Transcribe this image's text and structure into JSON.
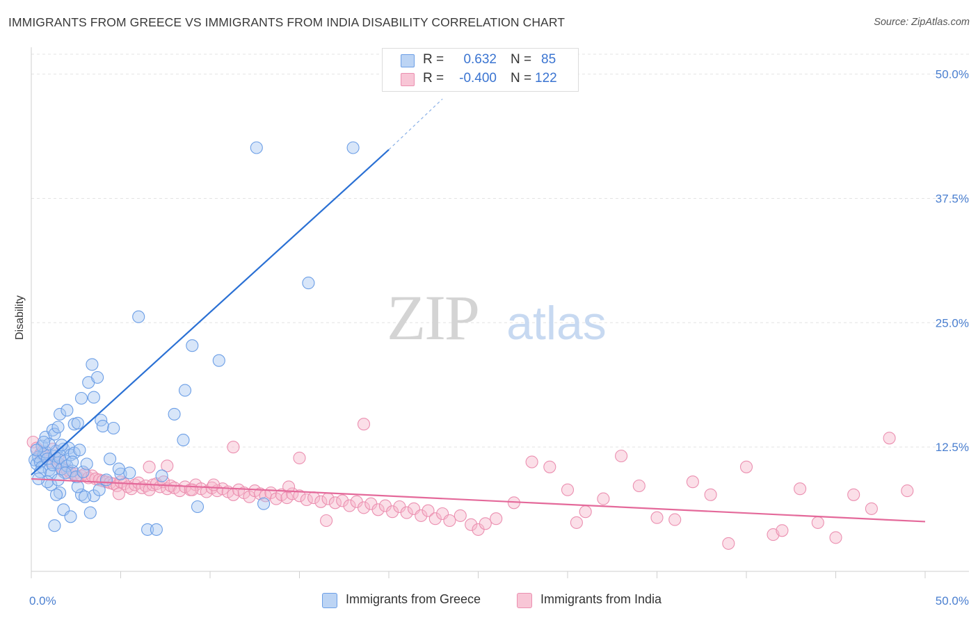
{
  "title": "IMMIGRANTS FROM GREECE VS IMMIGRANTS FROM INDIA DISABILITY CORRELATION CHART",
  "source": "Source: ZipAtlas.com",
  "watermark": {
    "zip": "ZIP",
    "atlas": "atlas"
  },
  "legend": {
    "greece": {
      "r_label": "R =",
      "r_value": "0.632",
      "n_label": "N =",
      "n_value": "85"
    },
    "india": {
      "r_label": "R =",
      "r_value": "-0.400",
      "n_label": "N =",
      "n_value": "122"
    }
  },
  "bottom_legend": {
    "greece": "Immigrants from Greece",
    "india": "Immigrants from India"
  },
  "colors": {
    "greece_fill": "#a9c8f2",
    "greece_stroke": "#6b9ee6",
    "greece_line": "#2a70d4",
    "india_fill": "#f6b9cd",
    "india_stroke": "#eb8fb0",
    "india_line": "#e4699a",
    "grid": "#e3e3e3",
    "axis_text": "#4a7fd0"
  },
  "chart_data": {
    "type": "scatter",
    "title": "IMMIGRANTS FROM GREECE VS IMMIGRANTS FROM INDIA DISABILITY CORRELATION CHART",
    "xlabel": "",
    "ylabel": "Disability",
    "xlim": [
      0,
      50
    ],
    "ylim": [
      0,
      52
    ],
    "x_tick_labels": [
      "0.0%",
      "50.0%"
    ],
    "y_ticks": [
      12.5,
      25.0,
      37.5,
      50.0
    ],
    "y_tick_labels": [
      "12.5%",
      "25.0%",
      "37.5%",
      "50.0%"
    ],
    "grid": true,
    "legend_position": "top-center",
    "series": [
      {
        "name": "Immigrants from Greece",
        "R": 0.632,
        "N": 85,
        "trend": {
          "x0": 0,
          "y0": 9.7,
          "x1": 20,
          "y1": 42.4,
          "dash_x1": 23,
          "dash_y1": 47.5
        },
        "points": [
          [
            0.2,
            11.2
          ],
          [
            0.3,
            10.8
          ],
          [
            0.4,
            11.5
          ],
          [
            0.5,
            11.0
          ],
          [
            0.6,
            10.5
          ],
          [
            0.7,
            11.8
          ],
          [
            0.8,
            12.0
          ],
          [
            0.9,
            11.3
          ],
          [
            1.0,
            10.2
          ],
          [
            1.1,
            9.8
          ],
          [
            1.2,
            10.7
          ],
          [
            1.3,
            11.6
          ],
          [
            1.4,
            12.1
          ],
          [
            1.5,
            10.9
          ],
          [
            1.6,
            11.4
          ],
          [
            1.7,
            10.3
          ],
          [
            1.8,
            12.3
          ],
          [
            1.9,
            11.1
          ],
          [
            2.0,
            10.6
          ],
          [
            2.1,
            12.4
          ],
          [
            2.2,
            11.7
          ],
          [
            2.3,
            10.1
          ],
          [
            2.4,
            11.9
          ],
          [
            2.5,
            9.5
          ],
          [
            0.5,
            10.0
          ],
          [
            0.6,
            12.6
          ],
          [
            0.8,
            13.5
          ],
          [
            1.0,
            12.8
          ],
          [
            1.2,
            14.2
          ],
          [
            1.3,
            13.8
          ],
          [
            1.5,
            14.5
          ],
          [
            1.6,
            15.8
          ],
          [
            2.0,
            16.2
          ],
          [
            2.4,
            14.8
          ],
          [
            2.6,
            14.9
          ],
          [
            2.8,
            17.4
          ],
          [
            3.2,
            19.0
          ],
          [
            3.4,
            20.8
          ],
          [
            3.5,
            17.5
          ],
          [
            3.7,
            19.5
          ],
          [
            3.9,
            15.2
          ],
          [
            4.0,
            14.6
          ],
          [
            4.6,
            14.4
          ],
          [
            5.0,
            9.8
          ],
          [
            5.5,
            9.9
          ],
          [
            6.0,
            25.6
          ],
          [
            6.5,
            4.2
          ],
          [
            7.0,
            4.2
          ],
          [
            7.3,
            9.6
          ],
          [
            8.0,
            15.8
          ],
          [
            8.5,
            13.2
          ],
          [
            8.6,
            18.2
          ],
          [
            9.0,
            22.7
          ],
          [
            9.3,
            6.5
          ],
          [
            10.5,
            21.2
          ],
          [
            12.6,
            42.6
          ],
          [
            13.0,
            6.8
          ],
          [
            15.5,
            29.0
          ],
          [
            18.0,
            42.6
          ],
          [
            1.6,
            7.9
          ],
          [
            1.4,
            7.7
          ],
          [
            2.8,
            7.7
          ],
          [
            3.5,
            7.6
          ],
          [
            3.0,
            7.5
          ],
          [
            1.8,
            6.2
          ],
          [
            2.2,
            5.5
          ],
          [
            3.3,
            5.9
          ],
          [
            1.3,
            4.6
          ],
          [
            4.2,
            9.2
          ],
          [
            4.4,
            11.3
          ],
          [
            2.9,
            10.0
          ],
          [
            2.7,
            12.2
          ],
          [
            1.1,
            8.7
          ],
          [
            0.9,
            9.0
          ],
          [
            1.9,
            9.9
          ],
          [
            2.6,
            8.5
          ],
          [
            0.4,
            9.3
          ],
          [
            3.8,
            8.2
          ],
          [
            4.9,
            10.3
          ],
          [
            0.7,
            13.0
          ],
          [
            1.7,
            12.7
          ],
          [
            2.3,
            11.0
          ],
          [
            0.3,
            12.2
          ],
          [
            3.1,
            10.8
          ],
          [
            1.5,
            9.2
          ]
        ]
      },
      {
        "name": "Immigrants from India",
        "R": -0.4,
        "N": 122,
        "trend": {
          "x0": 0,
          "y0": 9.3,
          "x1": 50,
          "y1": 5.0
        },
        "points": [
          [
            0.1,
            13.0
          ],
          [
            0.3,
            12.4
          ],
          [
            0.5,
            11.8
          ],
          [
            0.6,
            12.0
          ],
          [
            0.8,
            11.6
          ],
          [
            1.0,
            11.1
          ],
          [
            1.2,
            12.3
          ],
          [
            1.4,
            10.9
          ],
          [
            1.5,
            11.3
          ],
          [
            1.7,
            10.5
          ],
          [
            1.8,
            10.0
          ],
          [
            2.0,
            10.2
          ],
          [
            2.2,
            9.9
          ],
          [
            2.4,
            9.8
          ],
          [
            2.6,
            9.5
          ],
          [
            2.8,
            9.6
          ],
          [
            3.0,
            9.8
          ],
          [
            3.2,
            9.4
          ],
          [
            3.4,
            9.6
          ],
          [
            3.6,
            9.3
          ],
          [
            3.8,
            9.2
          ],
          [
            4.0,
            9.1
          ],
          [
            4.2,
            9.0
          ],
          [
            4.4,
            8.9
          ],
          [
            4.6,
            8.8
          ],
          [
            4.8,
            8.6
          ],
          [
            5.0,
            9.0
          ],
          [
            5.2,
            8.8
          ],
          [
            5.4,
            8.5
          ],
          [
            5.6,
            8.3
          ],
          [
            5.8,
            8.7
          ],
          [
            6.0,
            8.9
          ],
          [
            6.2,
            8.4
          ],
          [
            6.4,
            8.6
          ],
          [
            6.6,
            8.2
          ],
          [
            6.8,
            8.7
          ],
          [
            7.0,
            8.8
          ],
          [
            7.2,
            8.5
          ],
          [
            7.4,
            9.0
          ],
          [
            7.6,
            8.3
          ],
          [
            7.8,
            8.6
          ],
          [
            8.0,
            8.4
          ],
          [
            8.3,
            8.1
          ],
          [
            8.6,
            8.5
          ],
          [
            8.9,
            8.2
          ],
          [
            9.2,
            8.7
          ],
          [
            9.5,
            8.3
          ],
          [
            9.8,
            8.0
          ],
          [
            10.1,
            8.4
          ],
          [
            10.4,
            8.1
          ],
          [
            10.7,
            8.3
          ],
          [
            11.0,
            8.0
          ],
          [
            11.3,
            7.7
          ],
          [
            11.6,
            8.2
          ],
          [
            11.9,
            7.9
          ],
          [
            12.2,
            7.5
          ],
          [
            12.5,
            8.1
          ],
          [
            12.8,
            7.8
          ],
          [
            13.1,
            7.6
          ],
          [
            13.4,
            7.9
          ],
          [
            13.7,
            7.3
          ],
          [
            14.0,
            7.7
          ],
          [
            14.3,
            7.4
          ],
          [
            14.6,
            7.8
          ],
          [
            15.0,
            7.6
          ],
          [
            15.4,
            7.2
          ],
          [
            15.8,
            7.4
          ],
          [
            16.2,
            7.0
          ],
          [
            16.6,
            7.3
          ],
          [
            17.0,
            6.9
          ],
          [
            17.4,
            7.1
          ],
          [
            17.8,
            6.6
          ],
          [
            18.2,
            7.0
          ],
          [
            18.6,
            6.4
          ],
          [
            19.0,
            6.8
          ],
          [
            19.4,
            6.2
          ],
          [
            19.8,
            6.6
          ],
          [
            20.2,
            6.0
          ],
          [
            20.6,
            6.5
          ],
          [
            21.0,
            5.9
          ],
          [
            21.4,
            6.3
          ],
          [
            21.8,
            5.6
          ],
          [
            22.2,
            6.1
          ],
          [
            22.6,
            5.3
          ],
          [
            23.0,
            5.8
          ],
          [
            23.4,
            5.1
          ],
          [
            24.0,
            5.6
          ],
          [
            24.6,
            4.7
          ],
          [
            25.0,
            4.2
          ],
          [
            25.4,
            4.8
          ],
          [
            26.0,
            5.3
          ],
          [
            27.0,
            6.9
          ],
          [
            28.0,
            11.0
          ],
          [
            29.0,
            10.5
          ],
          [
            30.0,
            8.2
          ],
          [
            30.5,
            4.9
          ],
          [
            31.0,
            6.0
          ],
          [
            32.0,
            7.3
          ],
          [
            33.0,
            11.6
          ],
          [
            34.0,
            8.6
          ],
          [
            35.0,
            5.4
          ],
          [
            36.0,
            5.2
          ],
          [
            37.0,
            9.0
          ],
          [
            38.0,
            7.7
          ],
          [
            39.0,
            2.8
          ],
          [
            40.0,
            10.5
          ],
          [
            41.5,
            3.7
          ],
          [
            42.0,
            4.1
          ],
          [
            43.0,
            8.3
          ],
          [
            44.0,
            4.9
          ],
          [
            45.0,
            3.4
          ],
          [
            46.0,
            7.7
          ],
          [
            47.0,
            6.3
          ],
          [
            48.0,
            13.4
          ],
          [
            49.0,
            8.1
          ],
          [
            18.6,
            14.8
          ],
          [
            11.3,
            12.5
          ],
          [
            7.6,
            10.6
          ],
          [
            6.6,
            10.5
          ],
          [
            15.0,
            11.4
          ],
          [
            14.4,
            8.5
          ],
          [
            10.2,
            8.7
          ],
          [
            9.0,
            8.2
          ],
          [
            4.9,
            7.8
          ],
          [
            16.5,
            5.1
          ]
        ]
      }
    ]
  }
}
